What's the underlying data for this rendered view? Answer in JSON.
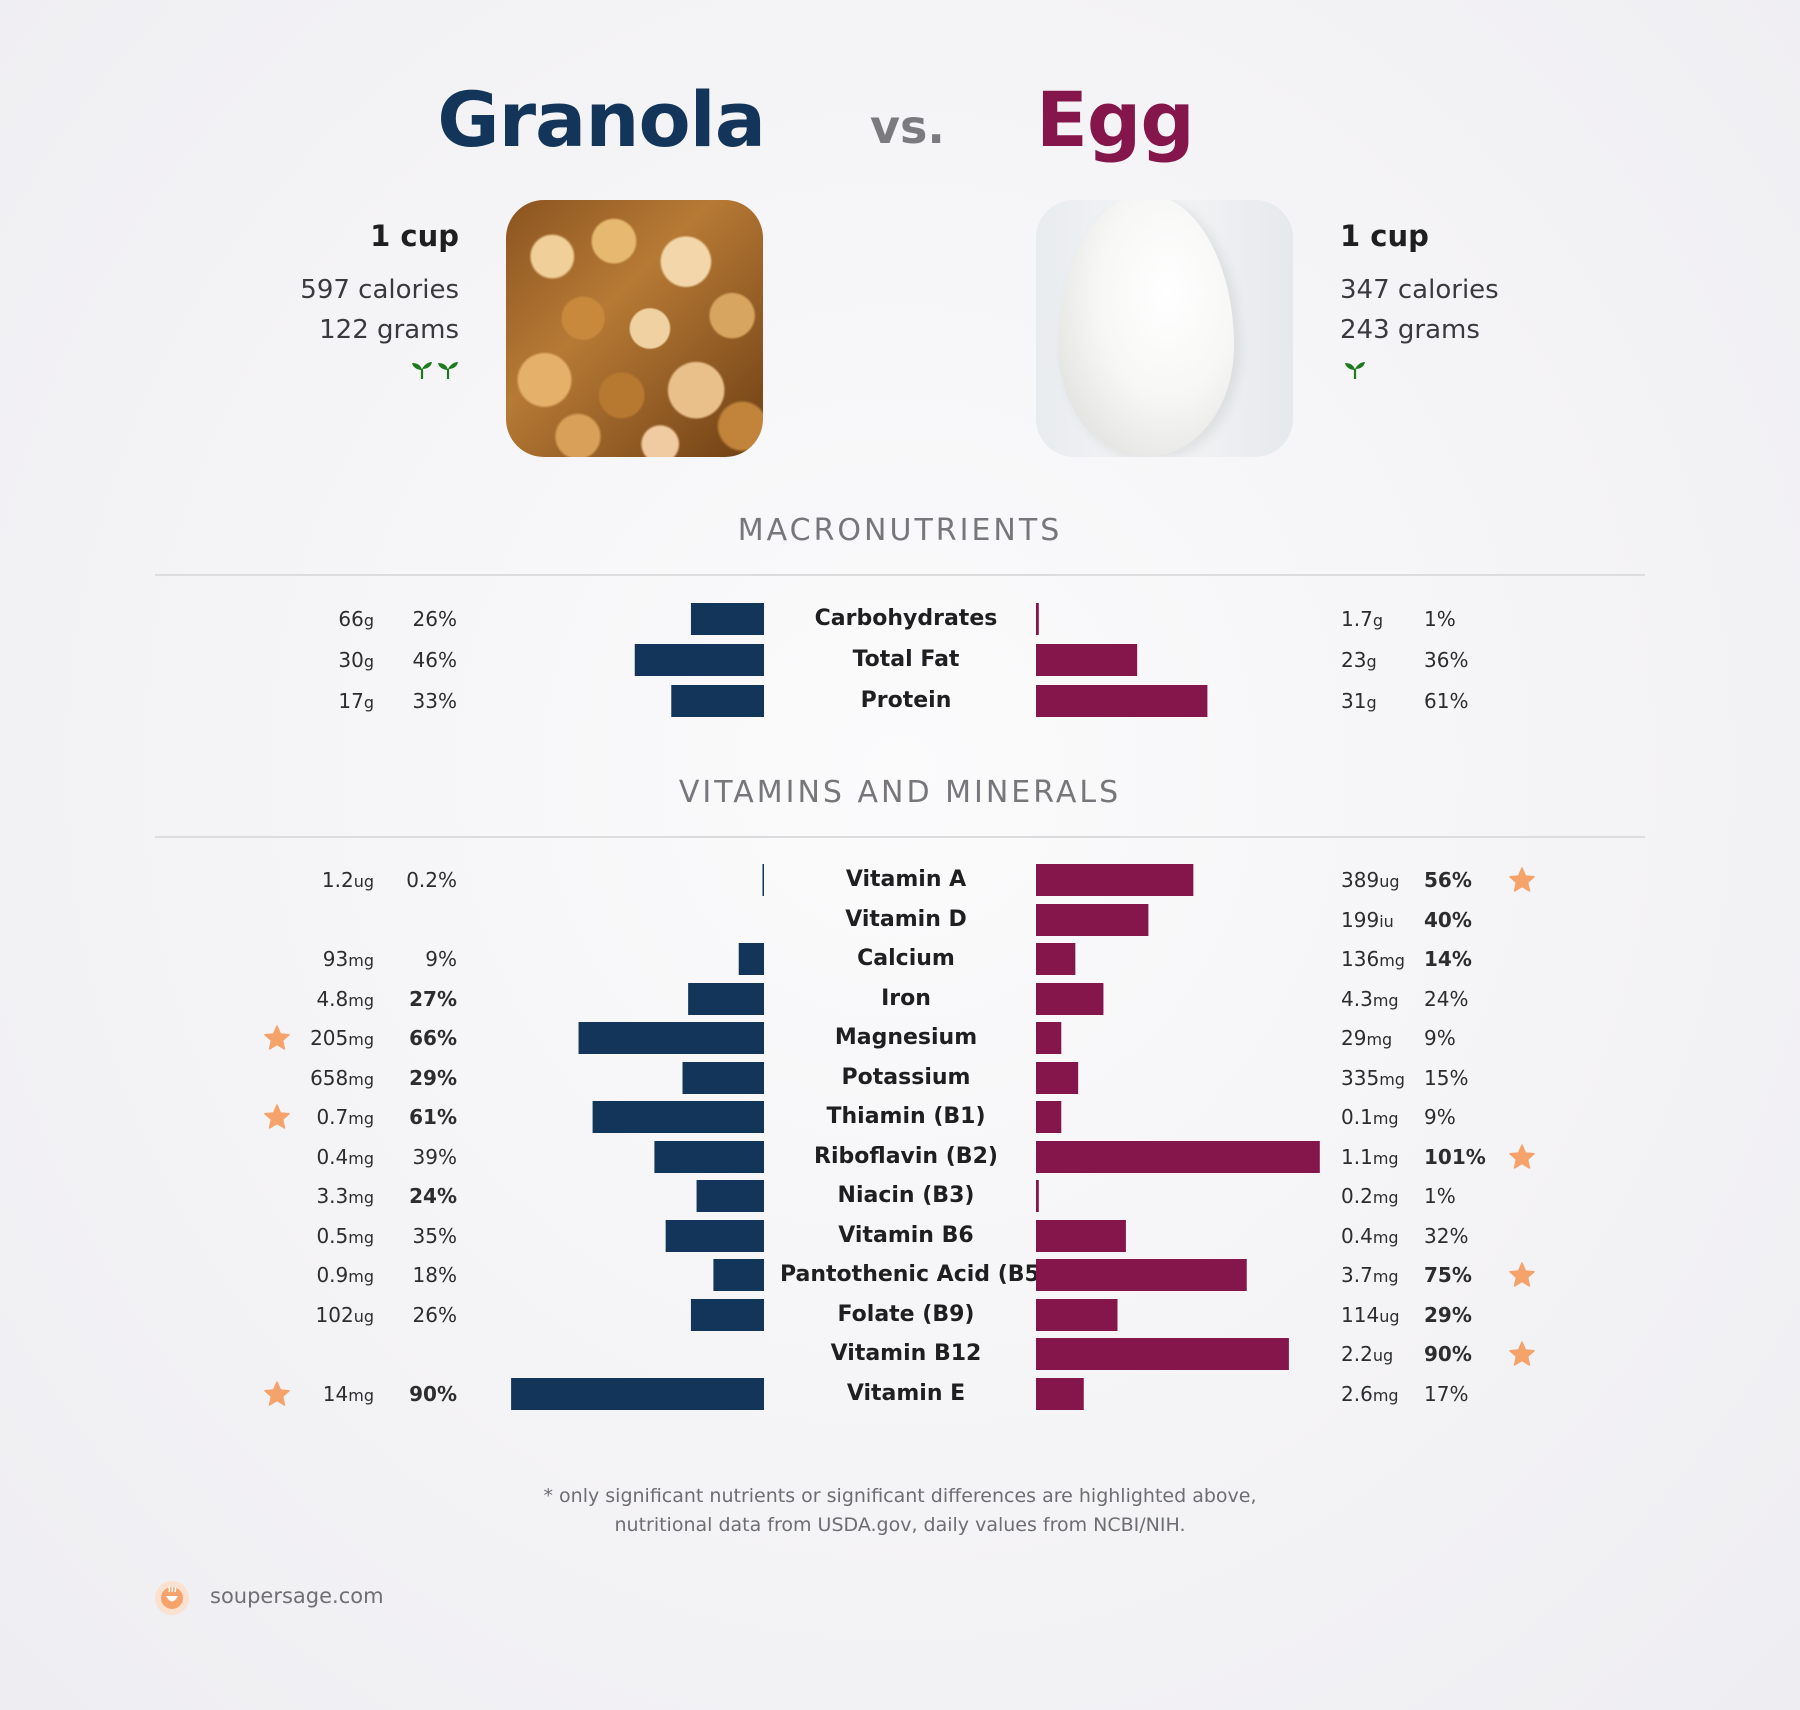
{
  "header": {
    "left_food": "Granola",
    "vs": "vs.",
    "right_food": "Egg",
    "left_color": "#13355a",
    "right_color": "#85164c",
    "vs_color": "#7b7b7f"
  },
  "left_info": {
    "serving": "1 cup",
    "calories": "597 calories",
    "grams": "122 grams",
    "sprouts": 2,
    "photo_icon": "granola-photo"
  },
  "right_info": {
    "serving": "1 cup",
    "calories": "347 calories",
    "grams": "243 grams",
    "sprouts": 1,
    "photo_icon": "egg-photo"
  },
  "sections": {
    "macro_title": "MACRONUTRIENTS",
    "vitamin_title": "VITAMINS AND MINERALS"
  },
  "chart_data": [
    {
      "type": "bar",
      "title": "MACRONUTRIENTS",
      "orientation": "diverging-horizontal",
      "categories": [
        "Carbohydrates",
        "Total Fat",
        "Protein"
      ],
      "series": [
        {
          "name": "Granola",
          "color": "#13355a",
          "amounts": [
            {
              "value": "66",
              "unit": "g"
            },
            {
              "value": "30",
              "unit": "g"
            },
            {
              "value": "17",
              "unit": "g"
            }
          ],
          "percent_labels": [
            "26%",
            "46%",
            "33%"
          ],
          "values": [
            26,
            46,
            33
          ],
          "bold": [
            false,
            false,
            false
          ],
          "stars": [
            false,
            false,
            false
          ]
        },
        {
          "name": "Egg",
          "color": "#85164c",
          "amounts": [
            {
              "value": "1.7",
              "unit": "g"
            },
            {
              "value": "23",
              "unit": "g"
            },
            {
              "value": "31",
              "unit": "g"
            }
          ],
          "percent_labels": [
            "1%",
            "36%",
            "61%"
          ],
          "values": [
            1,
            36,
            61
          ],
          "bold": [
            false,
            false,
            false
          ],
          "stars": [
            false,
            false,
            false
          ]
        }
      ]
    },
    {
      "type": "bar",
      "title": "VITAMINS AND MINERALS",
      "orientation": "diverging-horizontal",
      "categories": [
        "Vitamin A",
        "Vitamin D",
        "Calcium",
        "Iron",
        "Magnesium",
        "Potassium",
        "Thiamin (B1)",
        "Riboflavin (B2)",
        "Niacin (B3)",
        "Vitamin B6",
        "Pantothenic Acid (B5)",
        "Folate (B9)",
        "Vitamin B12",
        "Vitamin E"
      ],
      "series": [
        {
          "name": "Granola",
          "color": "#13355a",
          "amounts": [
            {
              "value": "1.2",
              "unit": "ug"
            },
            null,
            {
              "value": "93",
              "unit": "mg"
            },
            {
              "value": "4.8",
              "unit": "mg"
            },
            {
              "value": "205",
              "unit": "mg"
            },
            {
              "value": "658",
              "unit": "mg"
            },
            {
              "value": "0.7",
              "unit": "mg"
            },
            {
              "value": "0.4",
              "unit": "mg"
            },
            {
              "value": "3.3",
              "unit": "mg"
            },
            {
              "value": "0.5",
              "unit": "mg"
            },
            {
              "value": "0.9",
              "unit": "mg"
            },
            {
              "value": "102",
              "unit": "ug"
            },
            null,
            {
              "value": "14",
              "unit": "mg"
            }
          ],
          "percent_labels": [
            "0.2%",
            null,
            "9%",
            "27%",
            "66%",
            "29%",
            "61%",
            "39%",
            "24%",
            "35%",
            "18%",
            "26%",
            null,
            "90%"
          ],
          "values": [
            0.2,
            null,
            9,
            27,
            66,
            29,
            61,
            39,
            24,
            35,
            18,
            26,
            null,
            90
          ],
          "bold": [
            false,
            false,
            false,
            true,
            true,
            true,
            true,
            false,
            true,
            false,
            false,
            false,
            false,
            true
          ],
          "stars": [
            false,
            false,
            false,
            false,
            true,
            false,
            true,
            false,
            false,
            false,
            false,
            false,
            false,
            true
          ]
        },
        {
          "name": "Egg",
          "color": "#85164c",
          "amounts": [
            {
              "value": "389",
              "unit": "ug"
            },
            {
              "value": "199",
              "unit": "iu"
            },
            {
              "value": "136",
              "unit": "mg"
            },
            {
              "value": "4.3",
              "unit": "mg"
            },
            {
              "value": "29",
              "unit": "mg"
            },
            {
              "value": "335",
              "unit": "mg"
            },
            {
              "value": "0.1",
              "unit": "mg"
            },
            {
              "value": "1.1",
              "unit": "mg"
            },
            {
              "value": "0.2",
              "unit": "mg"
            },
            {
              "value": "0.4",
              "unit": "mg"
            },
            {
              "value": "3.7",
              "unit": "mg"
            },
            {
              "value": "114",
              "unit": "ug"
            },
            {
              "value": "2.2",
              "unit": "ug"
            },
            {
              "value": "2.6",
              "unit": "mg"
            }
          ],
          "percent_labels": [
            "56%",
            "40%",
            "14%",
            "24%",
            "9%",
            "15%",
            "9%",
            "101%",
            "1%",
            "32%",
            "75%",
            "29%",
            "90%",
            "17%"
          ],
          "values": [
            56,
            40,
            14,
            24,
            9,
            15,
            9,
            101,
            1,
            32,
            75,
            29,
            90,
            17
          ],
          "bold": [
            true,
            true,
            true,
            false,
            false,
            false,
            false,
            true,
            false,
            false,
            true,
            true,
            true,
            false
          ],
          "stars": [
            true,
            false,
            false,
            false,
            false,
            false,
            false,
            true,
            false,
            false,
            true,
            false,
            true,
            false
          ]
        }
      ]
    }
  ],
  "footer": {
    "note_line1": "* only significant nutrients or significant differences are highlighted above,",
    "note_line2": "nutritional data from USDA.gov, daily values from NCBI/NIH.",
    "brand": "soupersage.com",
    "brand_icon": "soupersage-logo-icon",
    "star_color": "#f5a36b",
    "sprout_color": "#1e7a1e"
  }
}
